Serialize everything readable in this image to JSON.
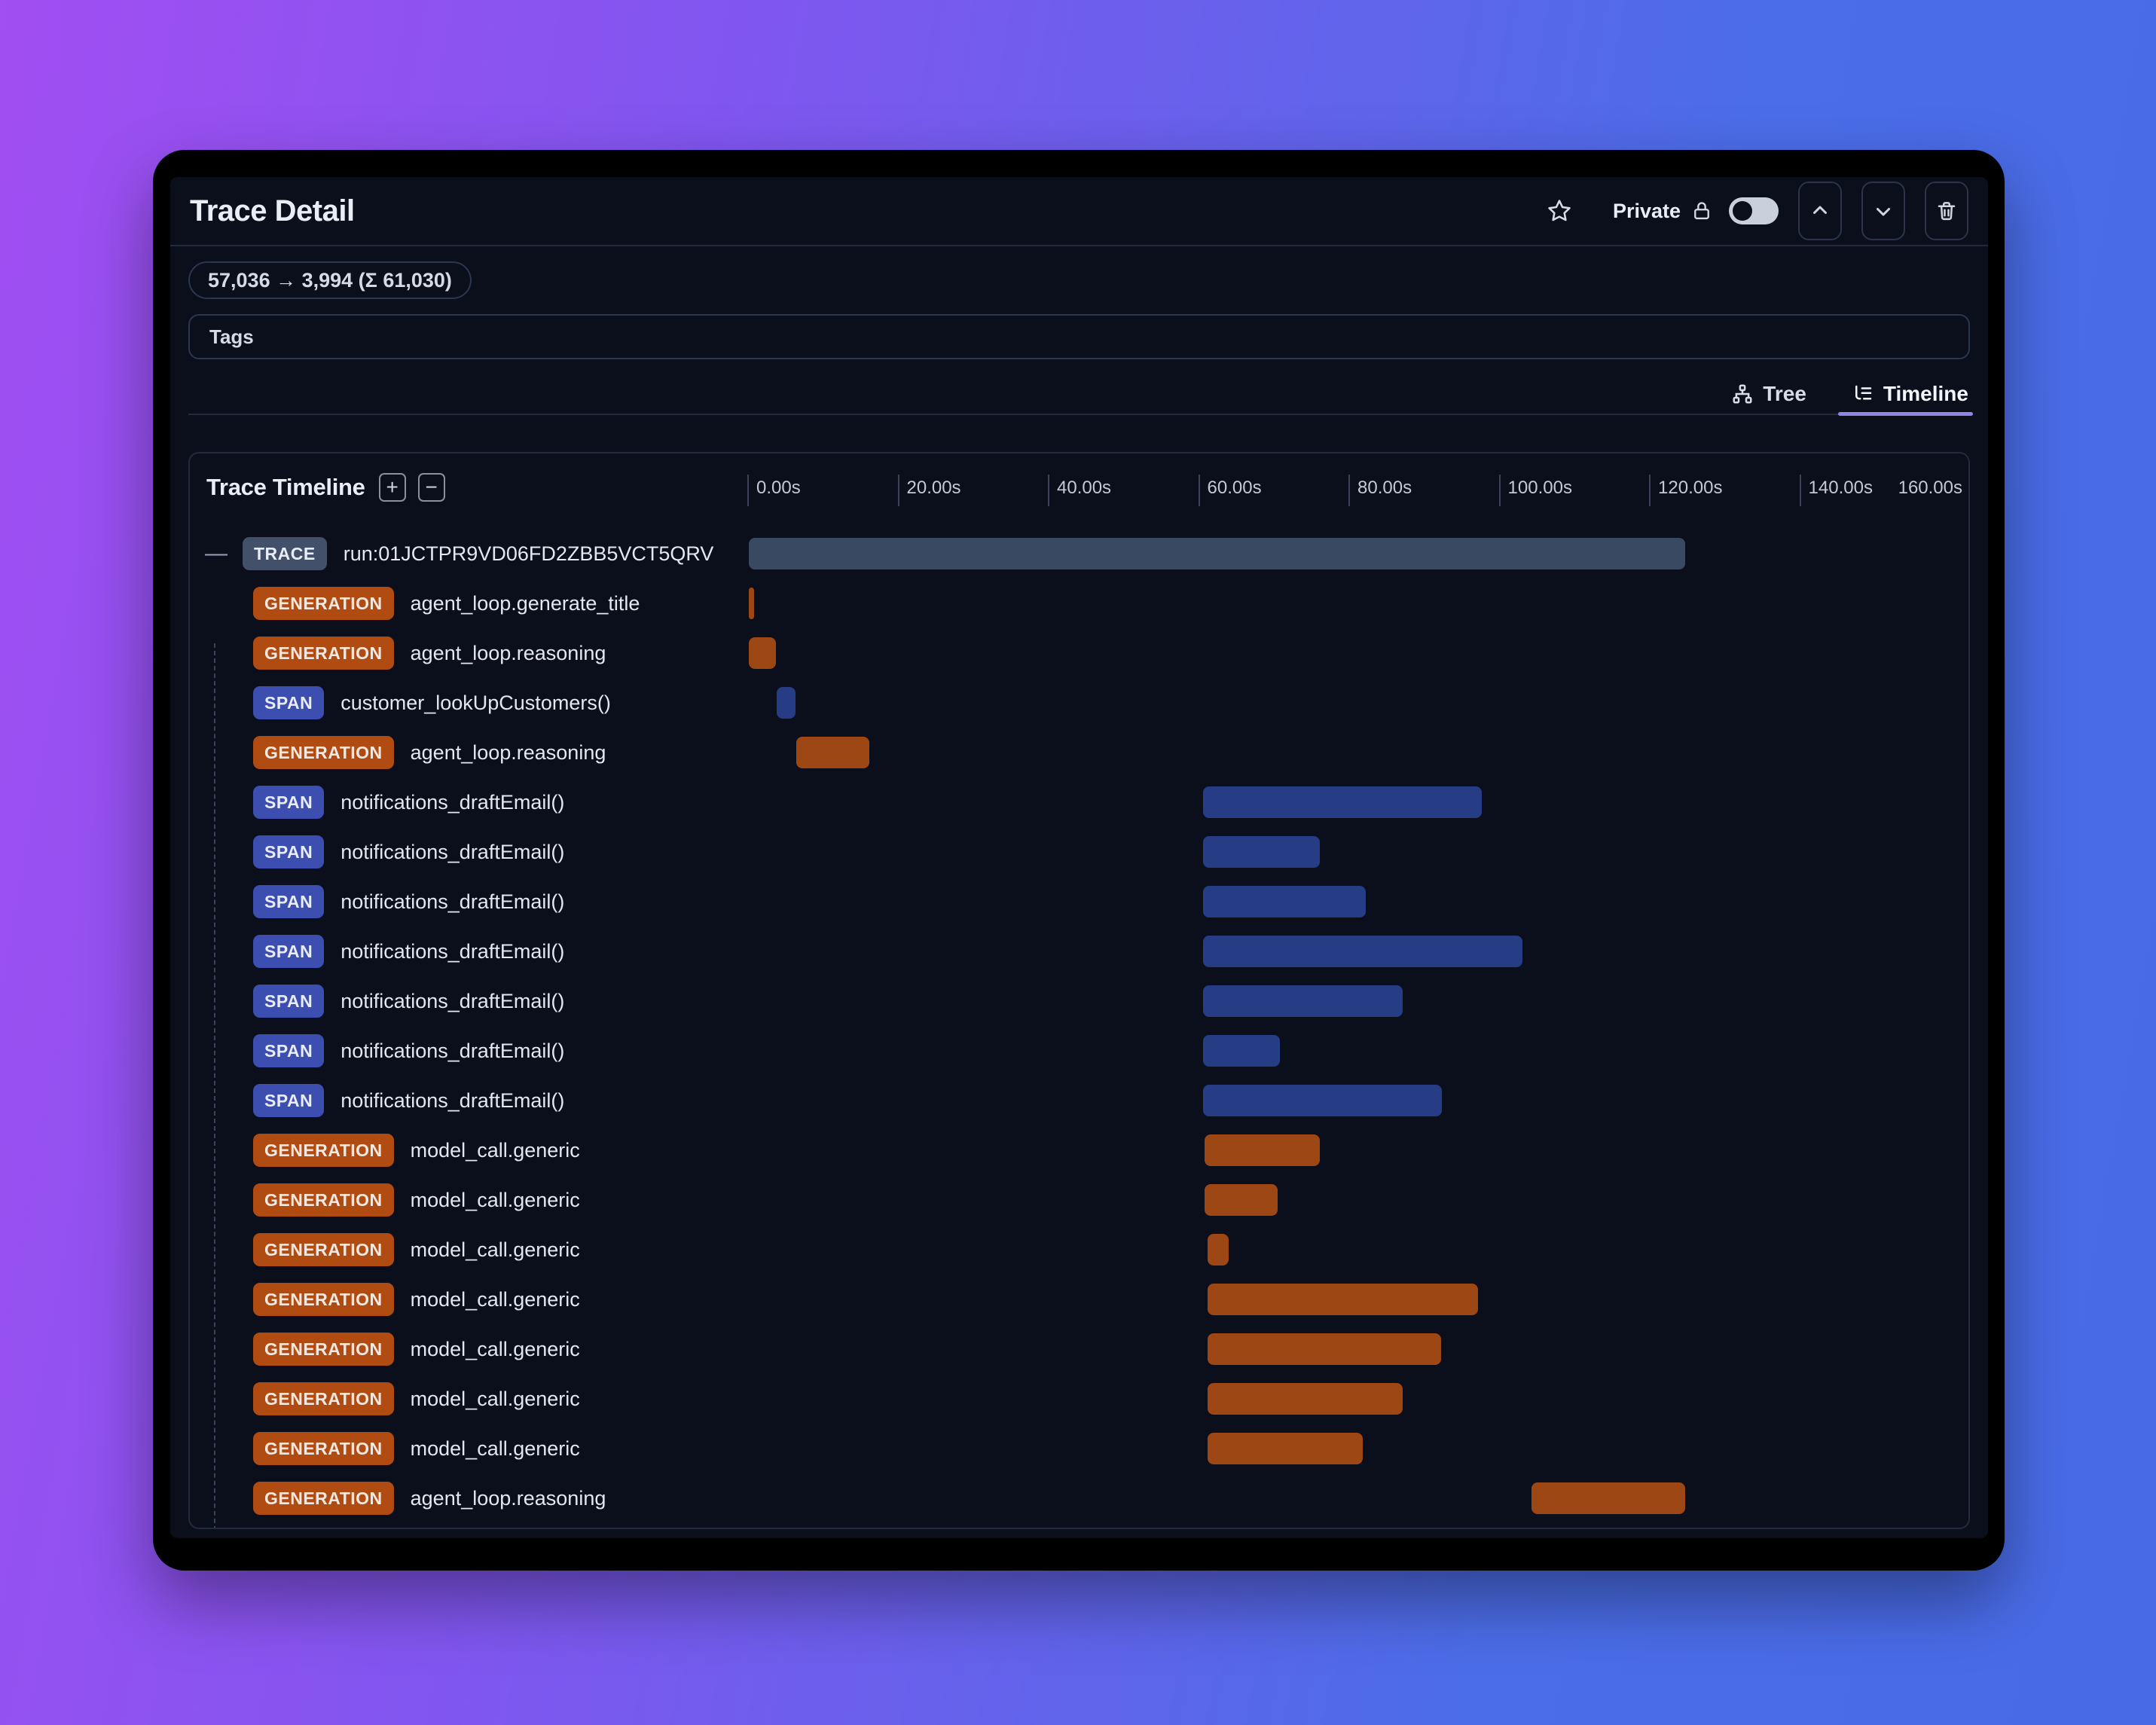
{
  "header": {
    "title": "Trace Detail",
    "privacy_label": "Private",
    "token_badge": "57,036 → 3,994 (Σ 61,030)",
    "tags_label": "Tags"
  },
  "tabs": [
    {
      "label": "Tree",
      "icon": "tree-icon",
      "active": false
    },
    {
      "label": "Timeline",
      "icon": "timeline-icon",
      "active": true
    }
  ],
  "timeline": {
    "title": "Trace Timeline",
    "zoom_in_glyph": "+",
    "zoom_out_glyph": "−",
    "collapse_indicator": "—",
    "axis": {
      "tick_labels": [
        "0.00s",
        "20.00s",
        "40.00s",
        "60.00s",
        "80.00s",
        "100.00s",
        "120.00s",
        "140.00s"
      ],
      "tick_seconds": [
        0,
        20,
        40,
        60,
        80,
        100,
        120,
        140
      ],
      "end_label": "160.00s",
      "max_seconds": 162.5
    },
    "rows": [
      {
        "type": "TRACE",
        "label": "run:01JCTPR9VD06FD2ZBB5VCT5QRV",
        "start": 0.2,
        "end": 124.8,
        "collapsible": true
      },
      {
        "type": "GENERATION",
        "label": "agent_loop.generate_title",
        "start": 0.2,
        "end": 0.9
      },
      {
        "type": "GENERATION",
        "label": "agent_loop.reasoning",
        "start": 0.2,
        "end": 3.8
      },
      {
        "type": "SPAN",
        "label": "customer_lookUpCustomers()",
        "start": 3.9,
        "end": 6.4
      },
      {
        "type": "GENERATION",
        "label": "agent_loop.reasoning",
        "start": 6.5,
        "end": 16.2
      },
      {
        "type": "SPAN",
        "label": "notifications_draftEmail()",
        "start": 60.6,
        "end": 97.7
      },
      {
        "type": "SPAN",
        "label": "notifications_draftEmail()",
        "start": 60.6,
        "end": 76.2
      },
      {
        "type": "SPAN",
        "label": "notifications_draftEmail()",
        "start": 60.6,
        "end": 82.3
      },
      {
        "type": "SPAN",
        "label": "notifications_draftEmail()",
        "start": 60.6,
        "end": 103.2
      },
      {
        "type": "SPAN",
        "label": "notifications_draftEmail()",
        "start": 60.6,
        "end": 87.2
      },
      {
        "type": "SPAN",
        "label": "notifications_draftEmail()",
        "start": 60.6,
        "end": 70.9
      },
      {
        "type": "SPAN",
        "label": "notifications_draftEmail()",
        "start": 60.6,
        "end": 92.4
      },
      {
        "type": "GENERATION",
        "label": "model_call.generic",
        "start": 60.8,
        "end": 76.2
      },
      {
        "type": "GENERATION",
        "label": "model_call.generic",
        "start": 60.8,
        "end": 70.6
      },
      {
        "type": "GENERATION",
        "label": "model_call.generic",
        "start": 61.3,
        "end": 64.1
      },
      {
        "type": "GENERATION",
        "label": "model_call.generic",
        "start": 61.3,
        "end": 97.2
      },
      {
        "type": "GENERATION",
        "label": "model_call.generic",
        "start": 61.3,
        "end": 92.3
      },
      {
        "type": "GENERATION",
        "label": "model_call.generic",
        "start": 61.3,
        "end": 87.2
      },
      {
        "type": "GENERATION",
        "label": "model_call.generic",
        "start": 61.3,
        "end": 81.9
      },
      {
        "type": "GENERATION",
        "label": "agent_loop.reasoning",
        "start": 104.4,
        "end": 124.8
      }
    ]
  },
  "colors": {
    "trace_badge": "#42506a",
    "generation_badge": "#b04c12",
    "span_badge": "#3c4eb0",
    "trace_bar": "#3a4962",
    "generation_bar": "#9d4714",
    "span_bar": "#263d85",
    "active_tab_underline": "#9283e8",
    "window_bg": "#0a0f1b"
  }
}
